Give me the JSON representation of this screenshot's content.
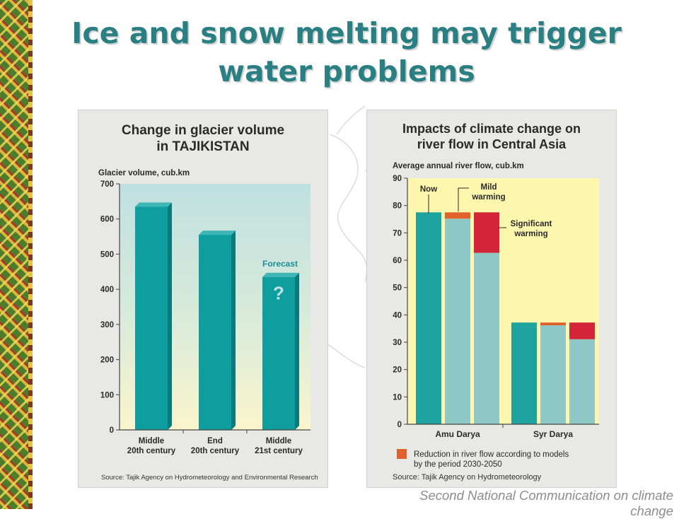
{
  "slide": {
    "title": "Ice and snow melting may trigger water problems",
    "footer": "Second National Communication on climate change"
  },
  "colors": {
    "title": "#2a7f82",
    "teal_bar": "#0e9ea0",
    "teal_bar_side": "#0b7a7c",
    "now_bar": "#1fa39e",
    "future_bar": "#8ec9c7",
    "reduction_mild": "#e0622a",
    "reduction_significant": "#d4243a",
    "plot_bg_top": "#bfe0e0",
    "plot_bg_bottom": "#fbf5cc",
    "right_plot_bg": "#fdf7ae"
  },
  "chart_data": [
    {
      "type": "bar",
      "title_lines": [
        "Change in glacier volume",
        "in TAJIKISTAN"
      ],
      "ylabel": "Glacier volume, cub.km",
      "ylim": [
        0,
        700
      ],
      "yticks": [
        0,
        100,
        200,
        300,
        400,
        500,
        600,
        700
      ],
      "categories": [
        [
          "Middle",
          "20th century"
        ],
        [
          "End",
          "20th century"
        ],
        [
          "Middle",
          "21st century"
        ]
      ],
      "values": [
        635,
        555,
        435
      ],
      "annotations": {
        "forecast_label": "Forecast",
        "question_mark": "?"
      },
      "source": "Source: Tajik Agency on Hydrometeorology and Environmental Research"
    },
    {
      "type": "bar",
      "title_lines": [
        "Impacts of climate change on",
        "river flow in Central Asia"
      ],
      "ylabel": "Average annual river flow, cub.km",
      "ylim": [
        0,
        90
      ],
      "yticks": [
        0,
        10,
        20,
        30,
        40,
        50,
        60,
        70,
        80,
        90
      ],
      "groups": [
        {
          "name": "Amu Darya",
          "bars": [
            {
              "scenario": "Now",
              "flow": 77.5,
              "reduction": 0
            },
            {
              "scenario": "Mild warming",
              "flow": 75.2,
              "reduction": 2.3
            },
            {
              "scenario": "Significant warming",
              "flow": 62.7,
              "reduction": 14.8
            }
          ]
        },
        {
          "name": "Syr Darya",
          "bars": [
            {
              "scenario": "Now",
              "flow": 37.2,
              "reduction": 0
            },
            {
              "scenario": "Mild warming",
              "flow": 36.2,
              "reduction": 1.0
            },
            {
              "scenario": "Significant warming",
              "flow": 31.1,
              "reduction": 6.1
            }
          ]
        }
      ],
      "annotations": {
        "now": "Now",
        "mild_lines": [
          "Mild",
          "warming"
        ],
        "significant_lines": [
          "Significant",
          "warming"
        ]
      },
      "legend_lines": [
        "Reduction in river flow according to models",
        "by the period 2030-2050"
      ],
      "source": "Source: Tajik Agency on Hydrometeorology"
    }
  ]
}
